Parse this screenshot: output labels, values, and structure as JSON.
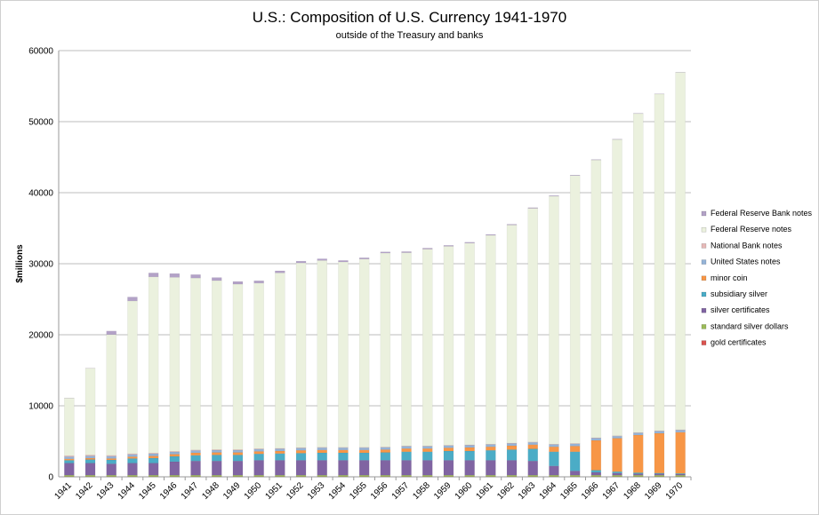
{
  "chart_data": {
    "type": "bar",
    "stacked": true,
    "title": "U.S.: Composition of U.S. Currency 1941-1970",
    "subtitle": "outside of the Treasury and banks",
    "xlabel": "",
    "ylabel": "$millions",
    "ylim": [
      0,
      60000
    ],
    "yticks": [
      "0",
      "10000",
      "20000",
      "30000",
      "40000",
      "50000",
      "60000"
    ],
    "grid": true,
    "legend_position": "right",
    "categories": [
      "1941",
      "1942",
      "1943",
      "1944",
      "1945",
      "1946",
      "1947",
      "1948",
      "1949",
      "1950",
      "1951",
      "1952",
      "1953",
      "1954",
      "1955",
      "1956",
      "1957",
      "1958",
      "1959",
      "1960",
      "1961",
      "1962",
      "1963",
      "1964",
      "1965",
      "1966",
      "1967",
      "1968",
      "1969",
      "1970"
    ],
    "series": [
      {
        "name": "gold certificates",
        "color": "#d9534f",
        "values": [
          30,
          30,
          30,
          30,
          30,
          30,
          30,
          30,
          30,
          30,
          30,
          30,
          30,
          30,
          30,
          30,
          30,
          30,
          30,
          30,
          30,
          30,
          30,
          30,
          30,
          30,
          30,
          30,
          30,
          30
        ]
      },
      {
        "name": "standard silver dollars",
        "color": "#9bbb59",
        "values": [
          200,
          200,
          200,
          200,
          200,
          200,
          200,
          200,
          200,
          200,
          200,
          200,
          200,
          200,
          200,
          200,
          200,
          200,
          200,
          200,
          200,
          200,
          200,
          200,
          200,
          200,
          200,
          200,
          200,
          200
        ]
      },
      {
        "name": "silver certificates",
        "color": "#8064a2",
        "values": [
          1700,
          1700,
          1600,
          1700,
          1700,
          1900,
          2000,
          2000,
          2000,
          2100,
          2100,
          2100,
          2100,
          2100,
          2100,
          2100,
          2100,
          2100,
          2100,
          2100,
          2100,
          2100,
          2000,
          1300,
          600,
          400,
          300,
          200,
          200,
          150
        ]
      },
      {
        "name": "subsidiary silver",
        "color": "#4bacc6",
        "values": [
          400,
          500,
          550,
          650,
          700,
          750,
          800,
          850,
          850,
          900,
          950,
          1000,
          1050,
          1050,
          1050,
          1100,
          1200,
          1200,
          1300,
          1300,
          1400,
          1500,
          1700,
          2000,
          2700,
          300,
          200,
          150,
          100,
          100
        ]
      },
      {
        "name": "minor coin",
        "color": "#f79646",
        "values": [
          200,
          200,
          200,
          250,
          300,
          300,
          350,
          350,
          350,
          350,
          350,
          400,
          400,
          400,
          400,
          400,
          450,
          450,
          450,
          500,
          500,
          550,
          600,
          700,
          800,
          4200,
          4700,
          5300,
          5600,
          5800
        ]
      },
      {
        "name": "United States notes",
        "color": "#95b3d7",
        "values": [
          300,
          300,
          320,
          320,
          320,
          320,
          320,
          320,
          320,
          320,
          320,
          320,
          320,
          320,
          320,
          320,
          320,
          320,
          320,
          320,
          320,
          320,
          320,
          320,
          320,
          320,
          300,
          300,
          300,
          300
        ]
      },
      {
        "name": "National Bank notes",
        "color": "#e6b9b8",
        "values": [
          150,
          140,
          120,
          110,
          100,
          90,
          85,
          80,
          75,
          70,
          65,
          60,
          60,
          55,
          55,
          55,
          55,
          55,
          55,
          55,
          55,
          55,
          55,
          55,
          55,
          55,
          55,
          55,
          55,
          55
        ]
      },
      {
        "name": "Federal Reserve notes",
        "color": "#ebf1de",
        "values": [
          8100,
          12200,
          17000,
          21500,
          24800,
          24500,
          24200,
          23800,
          23300,
          23300,
          24700,
          26000,
          26300,
          26100,
          26500,
          27300,
          27200,
          27700,
          28000,
          28400,
          29400,
          30700,
          32900,
          34900,
          37700,
          39100,
          41700,
          44900,
          47400,
          50300
        ]
      },
      {
        "name": "Federal Reserve Bank notes",
        "color": "#b3a2c7",
        "values": [
          20,
          20,
          500,
          550,
          550,
          520,
          480,
          420,
          370,
          330,
          280,
          250,
          230,
          200,
          180,
          160,
          150,
          140,
          130,
          120,
          110,
          100,
          90,
          80,
          70,
          60,
          50,
          40,
          30,
          25
        ]
      }
    ]
  }
}
